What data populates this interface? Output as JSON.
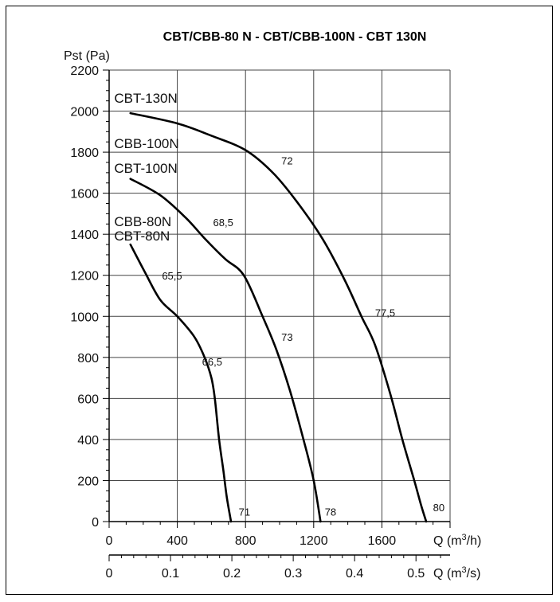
{
  "chart_data": {
    "type": "line",
    "title": "CBT/CBB-80 N - CBT/CBB-100N - CBT 130N",
    "ylabel": "Pst (Pa)",
    "xlabel_prefix": "Q (m",
    "xlabel_sup": "3",
    "xlabel_suffix": "/h)",
    "x2label_prefix": "Q (m",
    "x2label_sup": "3",
    "x2label_suffix": "/s)",
    "xlim": [
      0,
      2000
    ],
    "ylim": [
      0,
      2200
    ],
    "grid": true,
    "x_ticks": [
      0,
      400,
      800,
      1200,
      1600
    ],
    "x_tick_labels": [
      "0",
      "400",
      "800",
      "1200",
      "1600"
    ],
    "x2_ticks_m3h": [
      0,
      360,
      720,
      1080,
      1440,
      1800
    ],
    "x2_tick_labels": [
      "0",
      "0.1",
      "0.2",
      "0.3",
      "0.4",
      "0.5"
    ],
    "y_ticks": [
      0,
      200,
      400,
      600,
      800,
      1000,
      1200,
      1400,
      1600,
      1800,
      2000,
      2200
    ],
    "y_tick_labels": [
      "0",
      "200",
      "400",
      "600",
      "800",
      "1000",
      "1200",
      "1400",
      "1600",
      "1800",
      "2000",
      "2200"
    ],
    "series": [
      {
        "name": "CBT-80N",
        "points": [
          [
            125,
            1350
          ],
          [
            210,
            1215
          ],
          [
            300,
            1080
          ],
          [
            400,
            1000
          ],
          [
            500,
            900
          ],
          [
            560,
            800
          ],
          [
            600,
            700
          ],
          [
            620,
            600
          ],
          [
            645,
            400
          ],
          [
            670,
            250
          ],
          [
            690,
            120
          ],
          [
            715,
            0
          ]
        ]
      },
      {
        "name": "CBT-100N",
        "points": [
          [
            125,
            1670
          ],
          [
            300,
            1590
          ],
          [
            450,
            1480
          ],
          [
            560,
            1380
          ],
          [
            680,
            1280
          ],
          [
            790,
            1200
          ],
          [
            900,
            1000
          ],
          [
            980,
            840
          ],
          [
            1060,
            640
          ],
          [
            1140,
            400
          ],
          [
            1200,
            200
          ],
          [
            1240,
            0
          ]
        ]
      },
      {
        "name": "CBT-130N",
        "points": [
          [
            125,
            1990
          ],
          [
            400,
            1940
          ],
          [
            600,
            1880
          ],
          [
            800,
            1810
          ],
          [
            960,
            1700
          ],
          [
            1100,
            1560
          ],
          [
            1250,
            1380
          ],
          [
            1380,
            1180
          ],
          [
            1480,
            1000
          ],
          [
            1560,
            860
          ],
          [
            1650,
            620
          ],
          [
            1720,
            400
          ],
          [
            1790,
            200
          ],
          [
            1830,
            80
          ],
          [
            1860,
            0
          ]
        ]
      }
    ],
    "series_labels": [
      {
        "text": "CBT-130N",
        "x": 30,
        "y": 2040
      },
      {
        "text": "CBB-100N",
        "x": 30,
        "y": 1820
      },
      {
        "text": "CBT-100N",
        "x": 30,
        "y": 1700
      },
      {
        "text": "CBB-80N",
        "x": 30,
        "y": 1440
      },
      {
        "text": "CBT-80N",
        "x": 30,
        "y": 1370
      }
    ],
    "efficiency_labels": [
      {
        "text": "72",
        "x": 1010,
        "y": 1740
      },
      {
        "text": "77,5",
        "x": 1560,
        "y": 1000
      },
      {
        "text": "68,5",
        "x": 610,
        "y": 1440
      },
      {
        "text": "73",
        "x": 1010,
        "y": 880
      },
      {
        "text": "65,5",
        "x": 310,
        "y": 1180
      },
      {
        "text": "66,5",
        "x": 545,
        "y": 760
      },
      {
        "text": "71",
        "x": 760,
        "y": 30
      },
      {
        "text": "78",
        "x": 1265,
        "y": 30
      },
      {
        "text": "80",
        "x": 1900,
        "y": 50
      }
    ]
  }
}
